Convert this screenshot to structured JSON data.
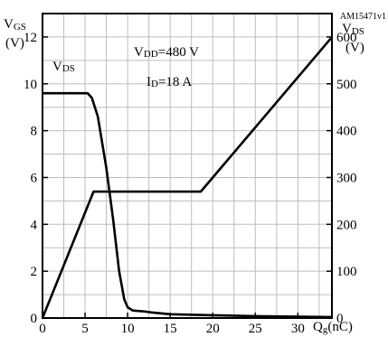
{
  "chart_id": "AM15471v1",
  "colors": {
    "line": "#000000",
    "grid": "#bdbdbd",
    "background": "#ffffff"
  },
  "chart_data": {
    "type": "line",
    "y_left_label": {
      "main": "V",
      "sub": "GS",
      "unit": "(V)"
    },
    "y_right_label": {
      "main": "V",
      "sub": "DS",
      "unit": "(V)"
    },
    "x_label": {
      "main": "Q",
      "sub": "g",
      "unit": "(nC)"
    },
    "x_ticks": [
      0,
      5,
      10,
      15,
      20,
      25,
      30
    ],
    "y_left_ticks": [
      0,
      2,
      4,
      6,
      8,
      10,
      12
    ],
    "y_right_ticks": [
      0,
      100,
      200,
      300,
      400,
      500,
      600
    ],
    "xlim": [
      0,
      34
    ],
    "ylim_left": [
      0,
      13
    ],
    "ylim_right": [
      0,
      650
    ],
    "grid": true,
    "annotations": {
      "vdd": {
        "main": "V",
        "sub": "DD",
        "value": "=480 V"
      },
      "id": {
        "main": "I",
        "sub": "D",
        "value": "=18 A"
      },
      "series_label": {
        "main": "V",
        "sub": "DS"
      }
    },
    "series": [
      {
        "axis": "left",
        "x": [
          0,
          6.0,
          18.6,
          33.9
        ],
        "y": [
          0,
          5.4,
          5.4,
          11.95
        ]
      },
      {
        "axis": "right",
        "x": [
          0,
          5.3,
          5.8,
          6.5,
          7.5,
          8.3,
          9.0,
          9.6,
          10.0,
          10.6,
          12.0,
          12.8,
          15.0,
          20.0,
          25.0,
          33.9
        ],
        "y": [
          480,
          480,
          470,
          430,
          320,
          210,
          100,
          40,
          23,
          16,
          14,
          12,
          8,
          6,
          4,
          2
        ]
      }
    ]
  }
}
